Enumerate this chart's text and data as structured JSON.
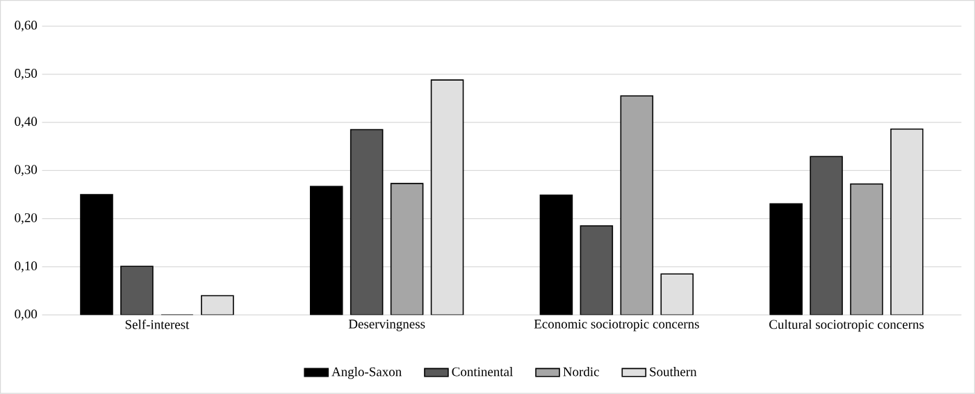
{
  "chart_data": {
    "type": "bar",
    "categories": [
      "Self-interest",
      "Deservingness",
      "Economic sociotropic concerns",
      "Cultural sociotropic concerns"
    ],
    "series": [
      {
        "name": "Anglo-Saxon",
        "color": "#000000",
        "values": [
          0.25,
          0.267,
          0.249,
          0.231
        ]
      },
      {
        "name": "Continental",
        "color": "#595959",
        "values": [
          0.101,
          0.385,
          0.185,
          0.329
        ]
      },
      {
        "name": "Nordic",
        "color": "#a6a6a6",
        "values": [
          0,
          0.273,
          0.455,
          0.272
        ]
      },
      {
        "name": "Southern",
        "color": "#e0e0e0",
        "values": [
          0.04,
          0.488,
          0.085,
          0.386
        ]
      }
    ],
    "ylim": [
      0,
      0.6
    ],
    "yticks": [
      {
        "value": 0,
        "label": "0,00"
      },
      {
        "value": 0.1,
        "label": "0,10"
      },
      {
        "value": 0.2,
        "label": "0,20"
      },
      {
        "value": 0.3,
        "label": "0,30"
      },
      {
        "value": 0.4,
        "label": "0,40"
      },
      {
        "value": 0.5,
        "label": "0,50"
      },
      {
        "value": 0.6,
        "label": "0,60"
      }
    ],
    "grid": "y",
    "legend": "bottom"
  }
}
